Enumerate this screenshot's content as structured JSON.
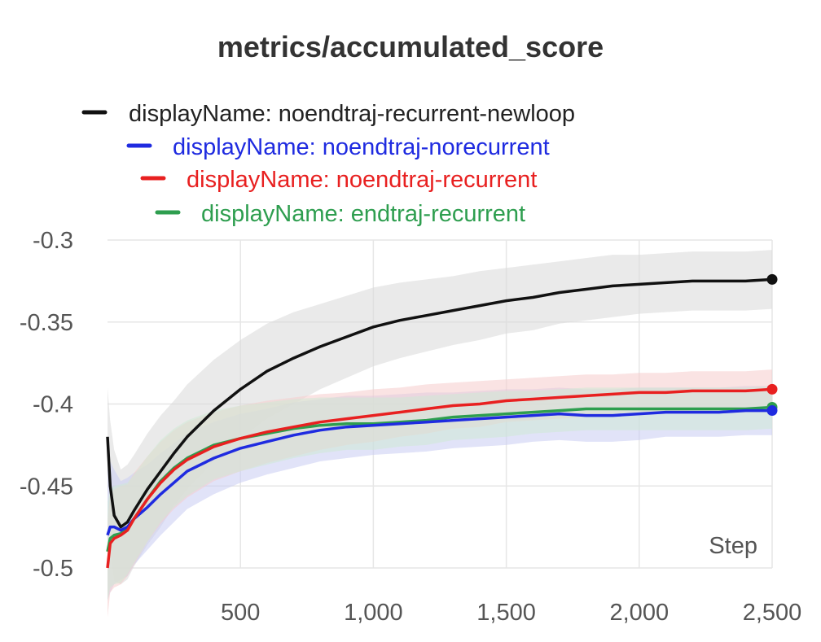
{
  "chart_data": {
    "type": "line",
    "title": "metrics/accumulated_score",
    "xlabel": "Step",
    "ylabel": "",
    "xlim": [
      0,
      2500
    ],
    "ylim": [
      -0.5,
      -0.3
    ],
    "x_ticks": [
      500,
      1000,
      1500,
      2000,
      2500
    ],
    "x_tick_labels": [
      "500",
      "1,000",
      "1,500",
      "2,000",
      "2,500"
    ],
    "y_ticks": [
      -0.3,
      -0.35,
      -0.4,
      -0.45,
      -0.5
    ],
    "y_tick_labels": [
      "-0.3",
      "-0.35",
      "-0.4",
      "-0.45",
      "-0.5"
    ],
    "grid": true,
    "legend_position": "top",
    "series": [
      {
        "name": "displayName: noendtraj-recurrent-newloop",
        "color": "#111111",
        "band_color": "#d9d9d9",
        "x": [
          0,
          10,
          25,
          50,
          75,
          100,
          150,
          200,
          250,
          300,
          400,
          500,
          600,
          700,
          800,
          900,
          1000,
          1100,
          1200,
          1300,
          1400,
          1500,
          1600,
          1700,
          1800,
          1900,
          2000,
          2100,
          2200,
          2300,
          2400,
          2500
        ],
        "y": [
          -0.42,
          -0.45,
          -0.468,
          -0.475,
          -0.472,
          -0.465,
          -0.452,
          -0.441,
          -0.43,
          -0.42,
          -0.404,
          -0.391,
          -0.38,
          -0.372,
          -0.365,
          -0.359,
          -0.353,
          -0.349,
          -0.346,
          -0.343,
          -0.34,
          -0.337,
          -0.335,
          -0.332,
          -0.33,
          -0.328,
          -0.327,
          -0.326,
          -0.325,
          -0.325,
          -0.325,
          -0.324
        ],
        "band_half_width": [
          0.03,
          0.04,
          0.04,
          0.035,
          0.035,
          0.034,
          0.034,
          0.034,
          0.032,
          0.032,
          0.031,
          0.03,
          0.029,
          0.028,
          0.026,
          0.025,
          0.024,
          0.023,
          0.022,
          0.021,
          0.021,
          0.02,
          0.02,
          0.019,
          0.019,
          0.019,
          0.018,
          0.018,
          0.018,
          0.018,
          0.018,
          0.018
        ]
      },
      {
        "name": "displayName: noendtraj-norecurrent",
        "color": "#1f2be0",
        "band_color": "#c9ccf3",
        "x": [
          0,
          10,
          25,
          50,
          75,
          100,
          150,
          200,
          250,
          300,
          400,
          500,
          600,
          700,
          800,
          900,
          1000,
          1100,
          1200,
          1300,
          1400,
          1500,
          1600,
          1700,
          1800,
          1900,
          2000,
          2100,
          2200,
          2300,
          2400,
          2500
        ],
        "y": [
          -0.48,
          -0.475,
          -0.475,
          -0.477,
          -0.475,
          -0.47,
          -0.463,
          -0.455,
          -0.448,
          -0.441,
          -0.433,
          -0.427,
          -0.423,
          -0.419,
          -0.416,
          -0.414,
          -0.413,
          -0.412,
          -0.411,
          -0.41,
          -0.409,
          -0.408,
          -0.407,
          -0.406,
          -0.407,
          -0.407,
          -0.406,
          -0.405,
          -0.405,
          -0.405,
          -0.404,
          -0.404
        ],
        "band_half_width": [
          0.04,
          0.04,
          0.035,
          0.03,
          0.03,
          0.028,
          0.026,
          0.025,
          0.024,
          0.023,
          0.022,
          0.021,
          0.02,
          0.02,
          0.019,
          0.019,
          0.018,
          0.018,
          0.018,
          0.017,
          0.017,
          0.017,
          0.016,
          0.016,
          0.016,
          0.016,
          0.016,
          0.015,
          0.015,
          0.015,
          0.015,
          0.015
        ]
      },
      {
        "name": "displayName: noendtraj-recurrent",
        "color": "#e82020",
        "band_color": "#f6cccc",
        "x": [
          0,
          10,
          25,
          50,
          75,
          100,
          150,
          200,
          250,
          300,
          400,
          500,
          600,
          700,
          800,
          900,
          1000,
          1100,
          1200,
          1300,
          1400,
          1500,
          1600,
          1700,
          1800,
          1900,
          2000,
          2100,
          2200,
          2300,
          2400,
          2500
        ],
        "y": [
          -0.5,
          -0.485,
          -0.482,
          -0.48,
          -0.477,
          -0.47,
          -0.458,
          -0.448,
          -0.44,
          -0.434,
          -0.426,
          -0.421,
          -0.417,
          -0.414,
          -0.411,
          -0.409,
          -0.407,
          -0.405,
          -0.403,
          -0.401,
          -0.4,
          -0.398,
          -0.397,
          -0.396,
          -0.395,
          -0.394,
          -0.393,
          -0.393,
          -0.392,
          -0.392,
          -0.392,
          -0.391
        ],
        "band_half_width": [
          0.03,
          0.03,
          0.03,
          0.03,
          0.028,
          0.028,
          0.026,
          0.025,
          0.024,
          0.023,
          0.021,
          0.02,
          0.019,
          0.018,
          0.017,
          0.016,
          0.016,
          0.015,
          0.015,
          0.014,
          0.014,
          0.013,
          0.013,
          0.013,
          0.013,
          0.012,
          0.012,
          0.012,
          0.012,
          0.012,
          0.012,
          0.012
        ]
      },
      {
        "name": "displayName: endtraj-recurrent",
        "color": "#2e9e4f",
        "band_color": "#cfe9d6",
        "x": [
          0,
          10,
          25,
          50,
          75,
          100,
          150,
          200,
          250,
          300,
          400,
          500,
          600,
          700,
          800,
          900,
          1000,
          1100,
          1200,
          1300,
          1400,
          1500,
          1600,
          1700,
          1800,
          1900,
          2000,
          2100,
          2200,
          2300,
          2400,
          2500
        ],
        "y": [
          -0.49,
          -0.482,
          -0.48,
          -0.479,
          -0.476,
          -0.47,
          -0.458,
          -0.447,
          -0.439,
          -0.433,
          -0.425,
          -0.421,
          -0.418,
          -0.415,
          -0.413,
          -0.412,
          -0.412,
          -0.411,
          -0.41,
          -0.408,
          -0.407,
          -0.406,
          -0.405,
          -0.404,
          -0.403,
          -0.403,
          -0.403,
          -0.403,
          -0.403,
          -0.403,
          -0.403,
          -0.402
        ],
        "band_half_width": [
          0.03,
          0.03,
          0.03,
          0.03,
          0.028,
          0.027,
          0.026,
          0.025,
          0.024,
          0.023,
          0.021,
          0.02,
          0.019,
          0.018,
          0.017,
          0.016,
          0.016,
          0.015,
          0.015,
          0.014,
          0.014,
          0.014,
          0.013,
          0.013,
          0.013,
          0.013,
          0.013,
          0.013,
          0.013,
          0.013,
          0.013,
          0.013
        ]
      }
    ]
  }
}
